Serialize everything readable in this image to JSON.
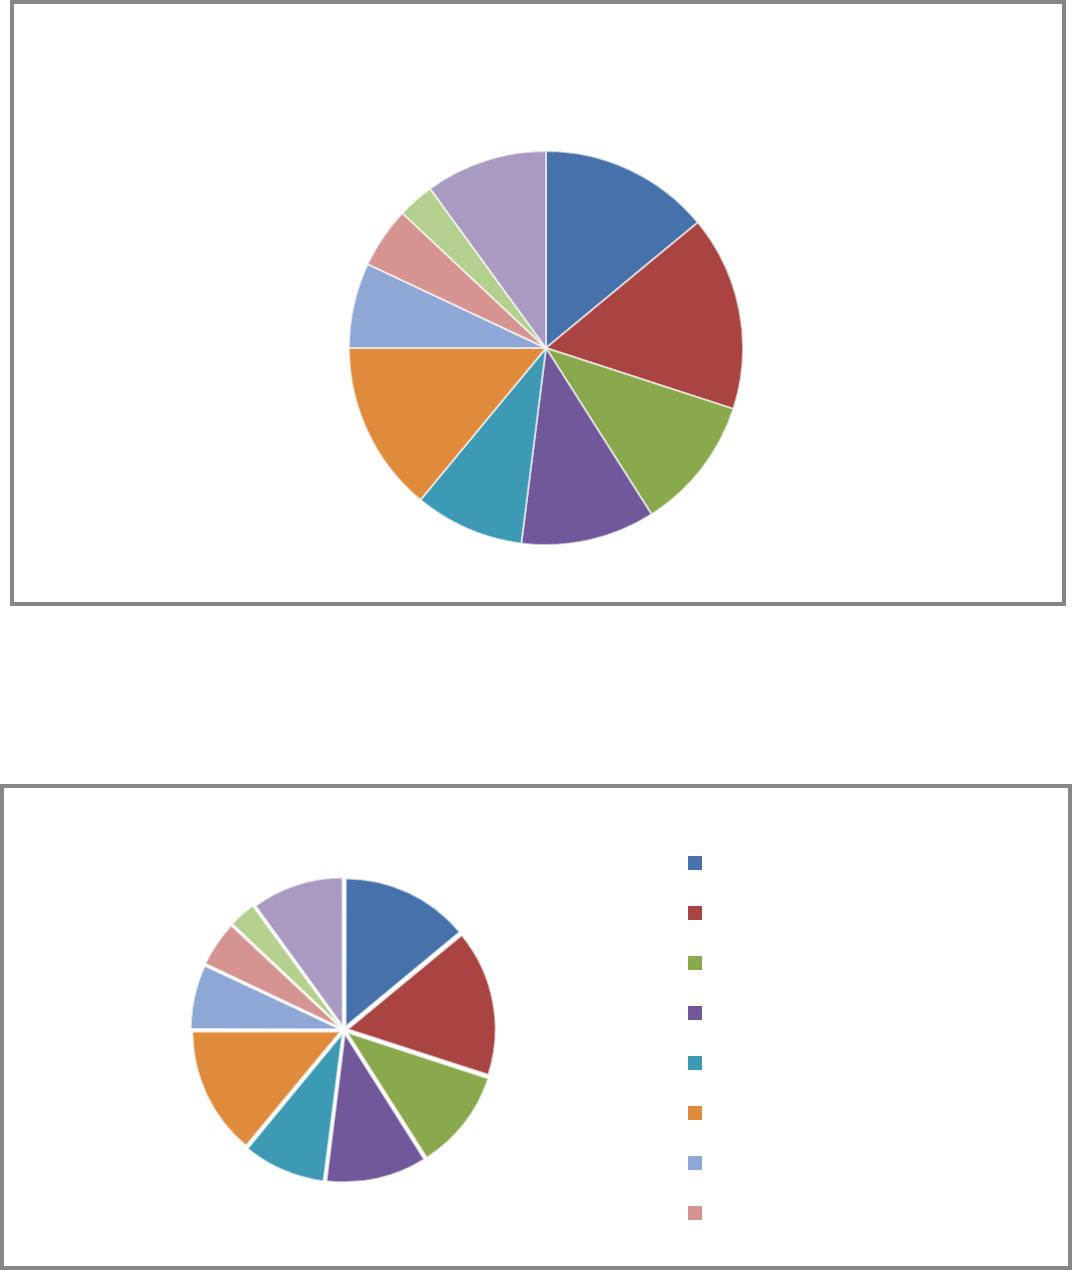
{
  "chart_data": [
    {
      "type": "pie",
      "categories": [
        null,
        null,
        null,
        null,
        null,
        null,
        null,
        null,
        null,
        null
      ],
      "values": [
        14,
        16,
        11,
        11,
        9,
        14,
        7,
        5,
        3,
        10
      ],
      "colors": [
        "#4771ab",
        "#a94442",
        "#8aa84c",
        "#71589a",
        "#3d9ab5",
        "#e08a3c",
        "#8ea7d4",
        "#d59392",
        "#b5cf8f",
        "#a99ac2"
      ]
    },
    {
      "type": "pie",
      "categories": [
        null,
        null,
        null,
        null,
        null,
        null,
        null,
        null,
        null,
        null
      ],
      "values": [
        14,
        16,
        11,
        11,
        9,
        14,
        7,
        5,
        3,
        10
      ],
      "colors": [
        "#4771ab",
        "#a94442",
        "#8aa84c",
        "#71589a",
        "#3d9ab5",
        "#e08a3c",
        "#8ea7d4",
        "#d59392",
        "#b5cf8f",
        "#a99ac2"
      ]
    }
  ]
}
